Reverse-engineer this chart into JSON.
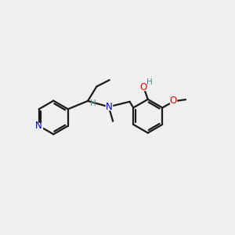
{
  "background_color": "#efefef",
  "bond_color": "#1a1a1a",
  "n_color": "#0000cc",
  "o_color": "#dd0000",
  "h_color": "#4a8a8a",
  "figsize": [
    3.0,
    3.0
  ],
  "dpi": 100,
  "xlim": [
    0,
    10
  ],
  "ylim": [
    0,
    10
  ]
}
